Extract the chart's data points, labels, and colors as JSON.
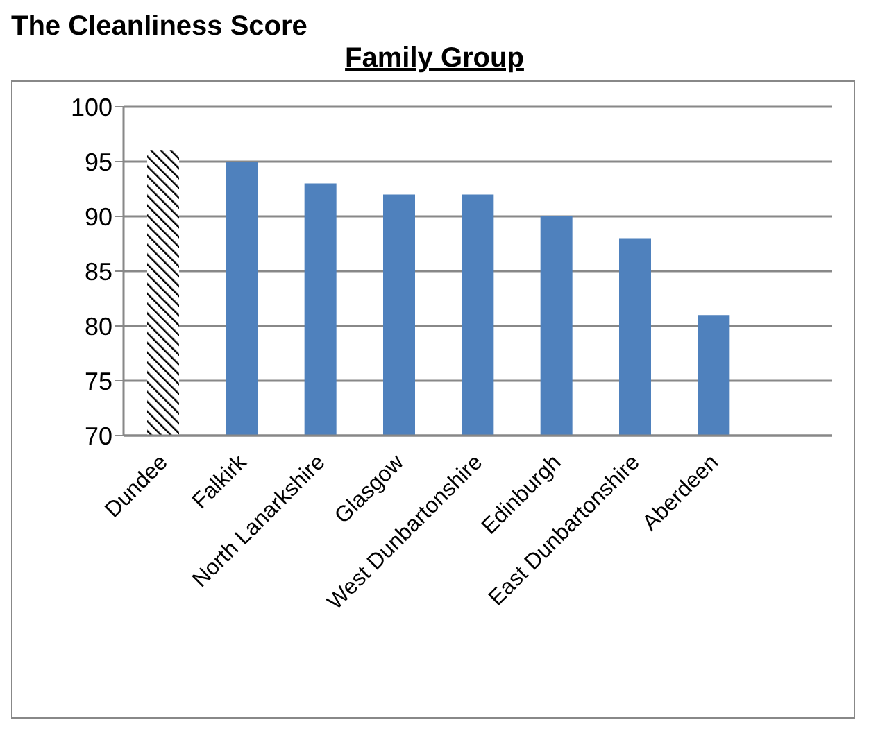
{
  "chart_data": {
    "type": "bar",
    "title": "The Cleanliness Score",
    "subtitle": "Family Group",
    "categories": [
      "Dundee",
      "Falkirk",
      "North Lanarkshire",
      "Glasgow",
      "West Dunbartonshire",
      "Edinburgh",
      "East Dunbartonshire",
      "Aberdeen",
      null
    ],
    "values": [
      96,
      95,
      93,
      92,
      92,
      90,
      88,
      81,
      null
    ],
    "colors": [
      "#000000",
      "#4f81bd",
      "#4f81bd",
      "#4f81bd",
      "#4f81bd",
      "#4f81bd",
      "#4f81bd",
      "#4f81bd",
      "#4f81bd"
    ],
    "ylim": [
      70,
      100
    ],
    "yticks": [
      70,
      75,
      80,
      85,
      90,
      95,
      100
    ],
    "grid": "y",
    "legend": false
  }
}
